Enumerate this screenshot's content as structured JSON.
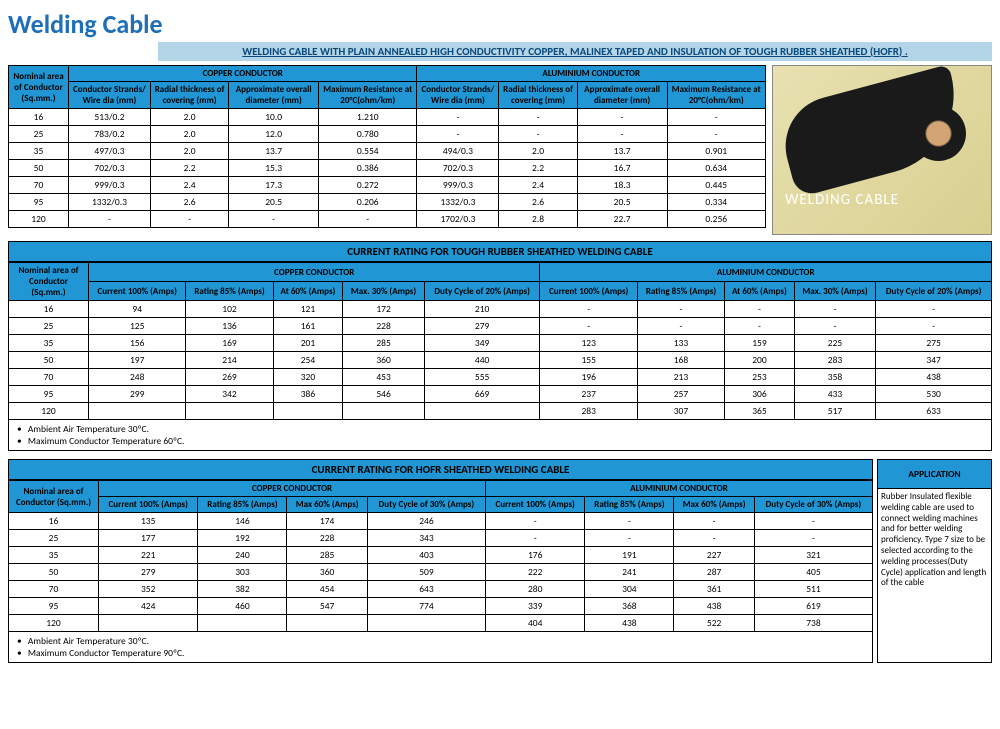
{
  "title": "Welding Cable",
  "subtitle": "WELDING CABLE WITH PLAIN ANNEALED HIGH CONDUCTIVITY COPPER, MALINEX TAPED AND INSULATION OF TOUGH RUBBER SHEATHED (HOFR) .",
  "imgLabel": "WELDING CABLE",
  "t1": {
    "h1": "Nominal area of Conductor (Sq.mm.)",
    "g1": "COPPER CONDUCTOR",
    "g2": "ALUMINIUM CONDUCTOR",
    "cols": [
      "Conductor Strands/ Wire dia (mm)",
      "Radial thickness of covering (mm)",
      "Approximate overall diameter (mm)",
      "Maximum Resistance at 20°C(ohm/km)",
      "Conductor Strands/ Wire dia (mm)",
      "Radial thickness of covering (mm)",
      "Approximate overall diameter (mm)",
      "Maximum Resistance at 20°C(ohm/km)"
    ],
    "rows": [
      [
        "16",
        "513/0.2",
        "2.0",
        "10.0",
        "1.210",
        "-",
        "-",
        "-",
        "-"
      ],
      [
        "25",
        "783/0.2",
        "2.0",
        "12.0",
        "0.780",
        "-",
        "-",
        "-",
        "-"
      ],
      [
        "35",
        "497/0.3",
        "2.0",
        "13.7",
        "0.554",
        "494/0.3",
        "2.0",
        "13.7",
        "0.901"
      ],
      [
        "50",
        "702/0.3",
        "2.2",
        "15.3",
        "0.386",
        "702/0.3",
        "2.2",
        "16.7",
        "0.634"
      ],
      [
        "70",
        "999/0.3",
        "2.4",
        "17.3",
        "0.272",
        "999/0.3",
        "2.4",
        "18.3",
        "0.445"
      ],
      [
        "95",
        "1332/0.3",
        "2.6",
        "20.5",
        "0.206",
        "1332/0.3",
        "2.6",
        "20.5",
        "0.334"
      ],
      [
        "120",
        "-",
        "-",
        "-",
        "-",
        "1702/0.3",
        "2.8",
        "22.7",
        "0.256"
      ]
    ]
  },
  "t2": {
    "title": "CURRENT RATING FOR TOUGH RUBBER SHEATHED WELDING CABLE",
    "h1": "Nominal area of Conductor (Sq.mm.)",
    "g1": "COPPER CONDUCTOR",
    "g2": "ALUMINIUM CONDUCTOR",
    "cols": [
      "Current 100% (Amps)",
      "Rating 85% (Amps)",
      "At 60% (Amps)",
      "Max. 30% (Amps)",
      "Duty Cycle of 20% (Amps)",
      "Current 100% (Amps)",
      "Rating 85% (Amps)",
      "At 60% (Amps)",
      "Max. 30% (Amps)",
      "Duty Cycle of 20% (Amps)"
    ],
    "rows": [
      [
        "16",
        "94",
        "102",
        "121",
        "172",
        "210",
        "-",
        "-",
        "-",
        "-",
        "-"
      ],
      [
        "25",
        "125",
        "136",
        "161",
        "228",
        "279",
        "-",
        "-",
        "-",
        "-",
        "-"
      ],
      [
        "35",
        "156",
        "169",
        "201",
        "285",
        "349",
        "123",
        "133",
        "159",
        "225",
        "275"
      ],
      [
        "50",
        "197",
        "214",
        "254",
        "360",
        "440",
        "155",
        "168",
        "200",
        "283",
        "347"
      ],
      [
        "70",
        "248",
        "269",
        "320",
        "453",
        "555",
        "196",
        "213",
        "253",
        "358",
        "438"
      ],
      [
        "95",
        "299",
        "342",
        "386",
        "546",
        "669",
        "237",
        "257",
        "306",
        "433",
        "530"
      ],
      [
        "120",
        "",
        "",
        "",
        "",
        "",
        "283",
        "307",
        "365",
        "517",
        "633"
      ]
    ],
    "notes": [
      "Ambient Air Temperature 30ºC.",
      "Maximum Conductor Temperature 60ºC."
    ]
  },
  "t3": {
    "title": "CURRENT RATING FOR HOFR SHEATHED WELDING CABLE",
    "h1": "Nominal area of Conductor (Sq.mm.)",
    "g1": "COPPER CONDUCTOR",
    "g2": "ALUMINIUM CONDUCTOR",
    "cols": [
      "Current 100% (Amps)",
      "Rating 85% (Amps)",
      "Max 60% (Amps)",
      "Duty Cycle of 30% (Amps)",
      "Current 100% (Amps)",
      "Rating 85% (Amps)",
      "Max 60% (Amps)",
      "Duty Cycle of 30% (Amps)"
    ],
    "rows": [
      [
        "16",
        "135",
        "146",
        "174",
        "246",
        "-",
        "-",
        "-",
        "-"
      ],
      [
        "25",
        "177",
        "192",
        "228",
        "343",
        "-",
        "-",
        "-",
        "-"
      ],
      [
        "35",
        "221",
        "240",
        "285",
        "403",
        "176",
        "191",
        "227",
        "321"
      ],
      [
        "50",
        "279",
        "303",
        "360",
        "509",
        "222",
        "241",
        "287",
        "405"
      ],
      [
        "70",
        "352",
        "382",
        "454",
        "643",
        "280",
        "304",
        "361",
        "511"
      ],
      [
        "95",
        "424",
        "460",
        "547",
        "774",
        "339",
        "368",
        "438",
        "619"
      ],
      [
        "120",
        "",
        "",
        "",
        "",
        "404",
        "438",
        "522",
        "738"
      ]
    ],
    "notes": [
      "Ambient Air Temperature 30ºC.",
      "Maximum Conductor Temperature 90ºC."
    ]
  },
  "app": {
    "title": "APPLICATION",
    "text": "Rubber Insulated flexible welding cable are used to connect welding machines and for better welding proficiency.\nType 7 size to be selected according to the welding processes(Duty Cycle) application and length of the cable"
  },
  "colors": {
    "header": "#2196d4",
    "title": "#1f6fb8",
    "subtitleBg": "#b4d4e8"
  }
}
